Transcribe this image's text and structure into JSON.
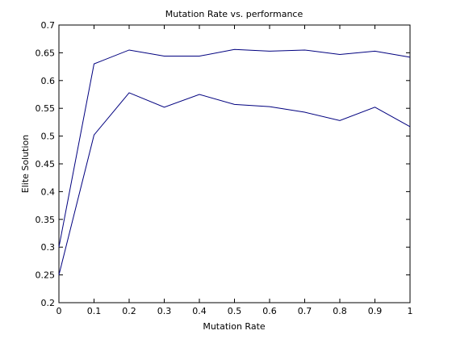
{
  "chart_data": {
    "type": "line",
    "title": "Mutation Rate vs. performance",
    "xlabel": "Mutation Rate",
    "ylabel": "Elite Solution",
    "xlim": [
      0,
      1
    ],
    "ylim": [
      0.2,
      0.7
    ],
    "xticks": [
      "0",
      "0.1",
      "0.2",
      "0.3",
      "0.4",
      "0.5",
      "0.6",
      "0.7",
      "0.8",
      "0.9",
      "1"
    ],
    "yticks": [
      "0.2",
      "0.25",
      "0.3",
      "0.35",
      "0.4",
      "0.45",
      "0.5",
      "0.55",
      "0.6",
      "0.65",
      "0.7"
    ],
    "grid": false,
    "x": [
      0,
      0.1,
      0.2,
      0.3,
      0.4,
      0.5,
      0.6,
      0.7,
      0.8,
      0.9,
      1.0
    ],
    "series": [
      {
        "values": [
          0.3,
          0.63,
          0.655,
          0.644,
          0.644,
          0.656,
          0.653,
          0.655,
          0.647,
          0.653,
          0.642
        ],
        "color": "#00007f"
      },
      {
        "values": [
          0.25,
          0.502,
          0.578,
          0.552,
          0.575,
          0.557,
          0.553,
          0.543,
          0.528,
          0.552,
          0.517
        ],
        "color": "#00007f"
      }
    ]
  }
}
